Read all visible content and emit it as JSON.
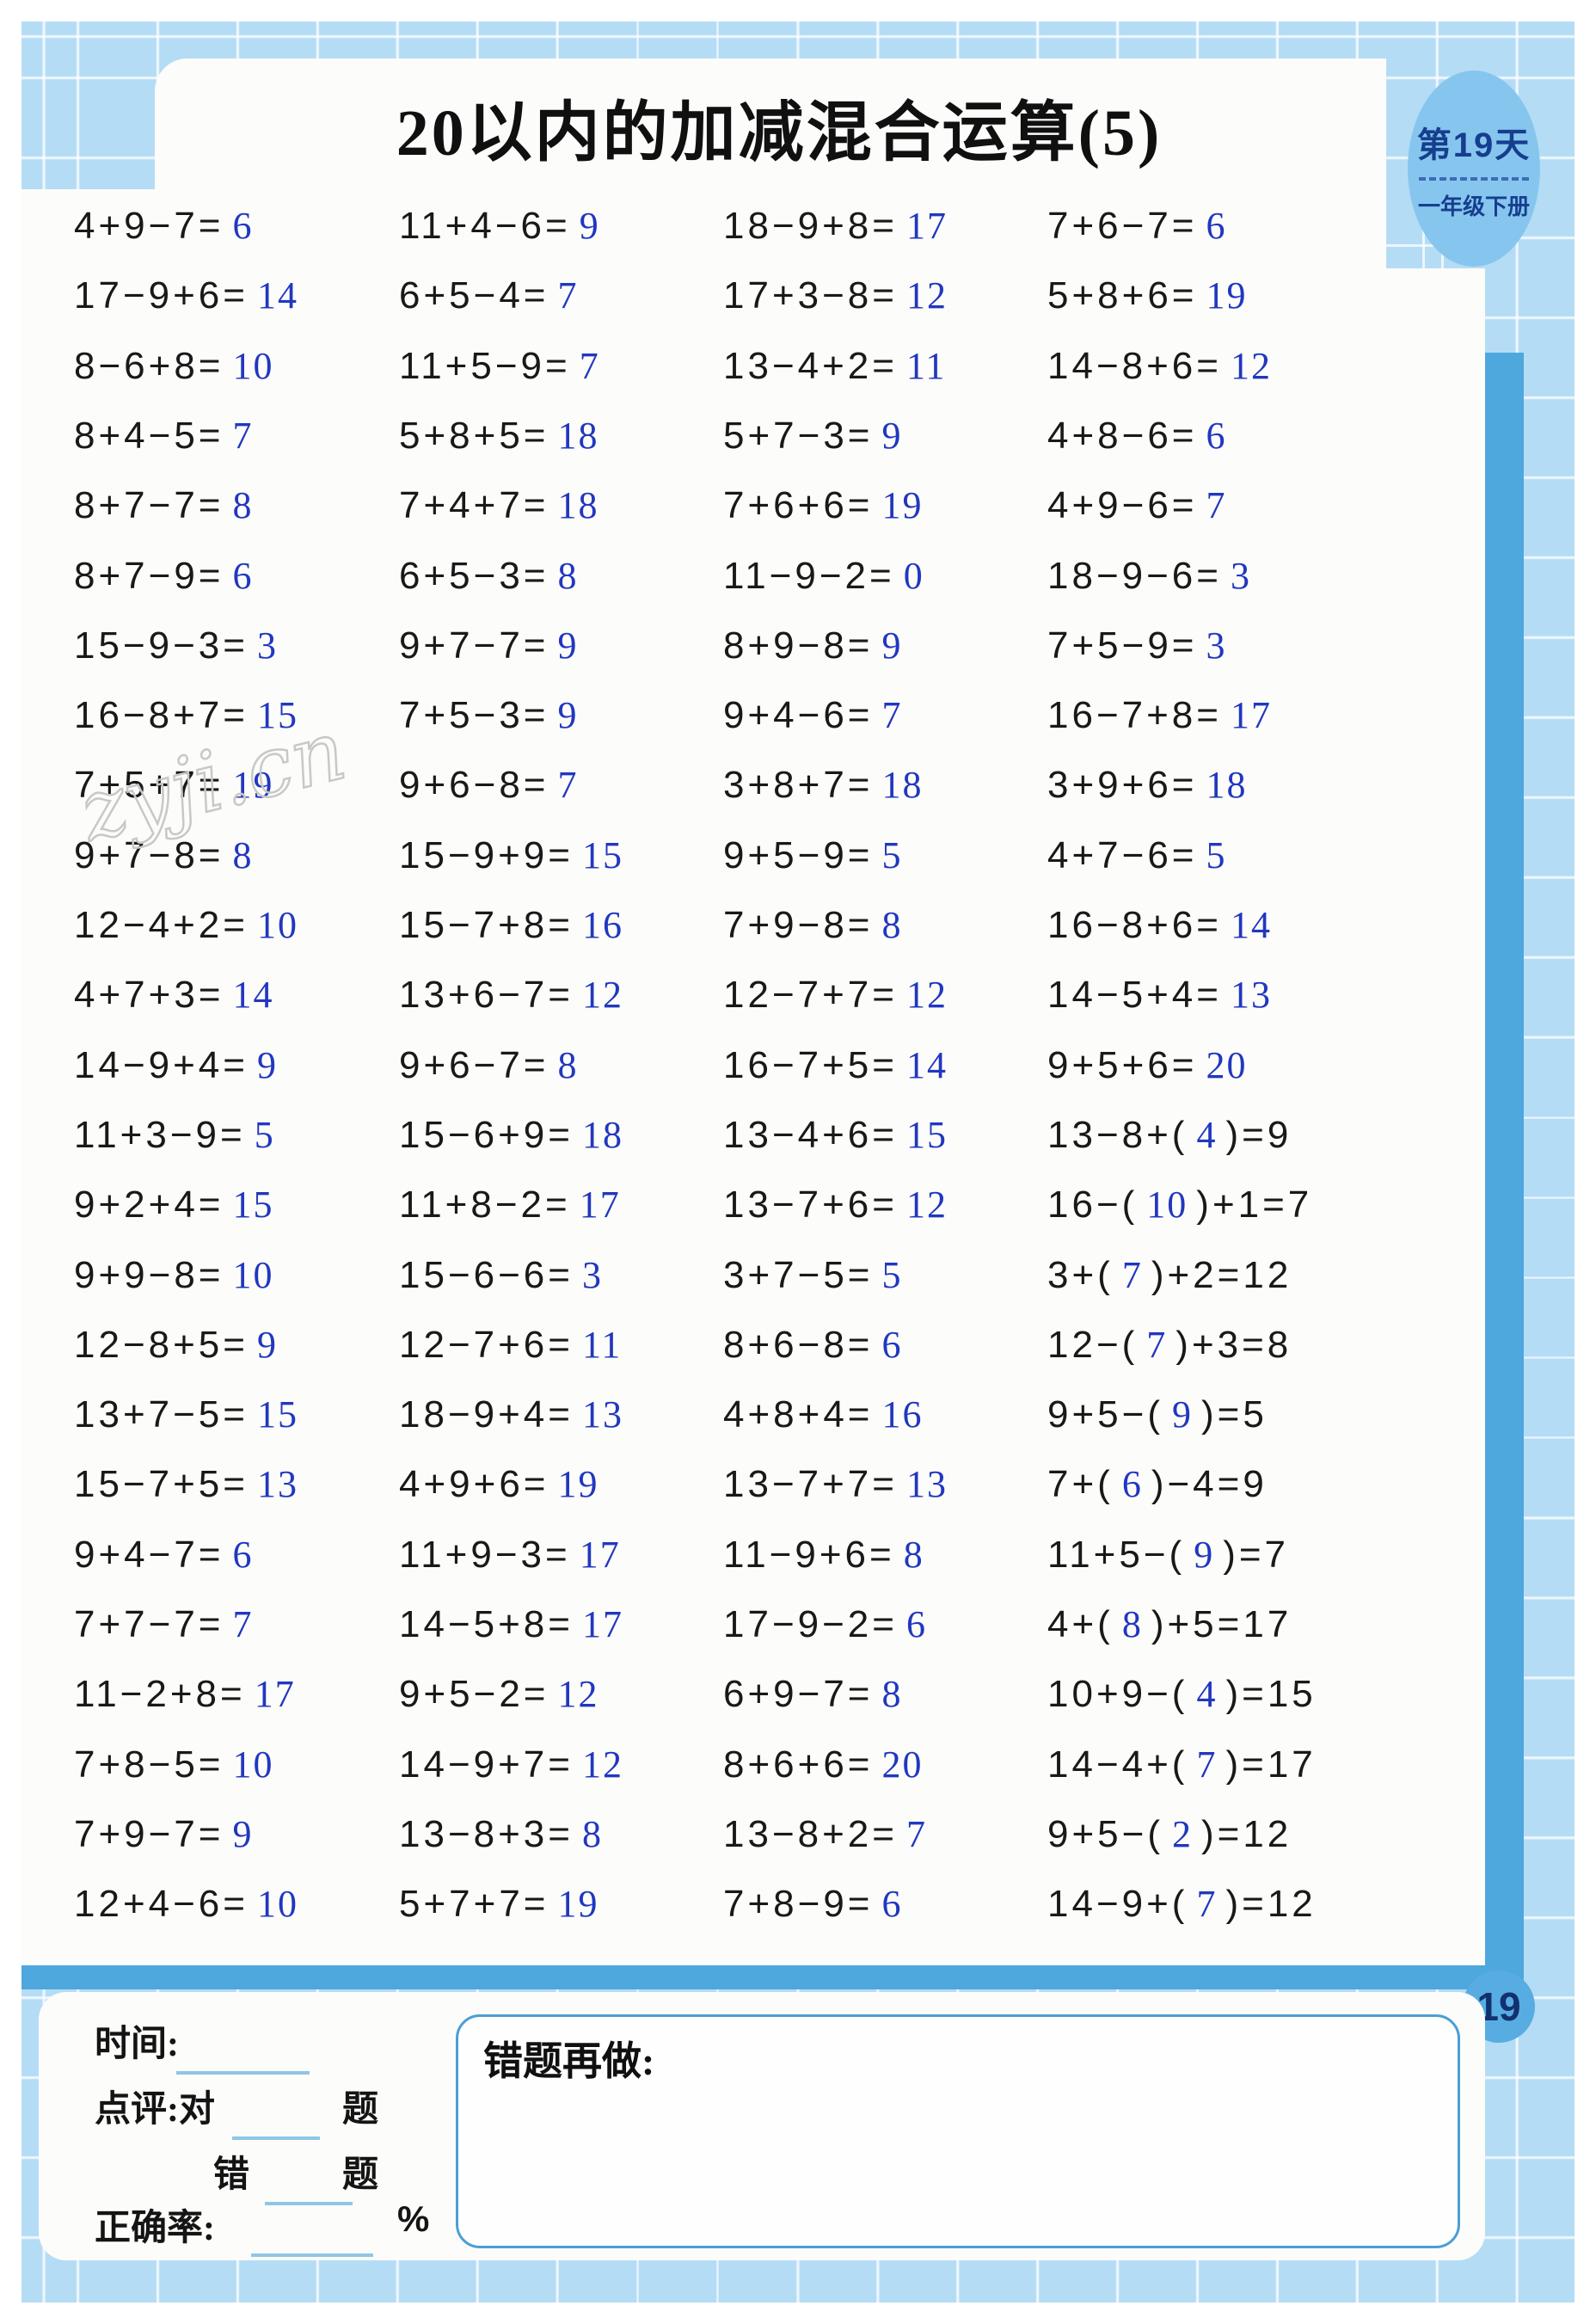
{
  "header": {
    "title": "20以内的加减混合运算(5)",
    "badge_line1": "第19天",
    "badge_line2": "一年级下册"
  },
  "watermark": {
    "text": "zyji.cn"
  },
  "colors": {
    "background_blue": "#b5dcf5",
    "bar_blue": "#4ea7dd",
    "badge_blue": "#86c6ee",
    "badge_text_navy": "#163e8e",
    "answer_blue": "#2137c0"
  },
  "problems": {
    "rows": 25,
    "columns": 4,
    "items": [
      [
        {
          "pre": "4+9−7=",
          "ans": "6",
          "post": ""
        },
        {
          "pre": "11+4−6=",
          "ans": "9",
          "post": ""
        },
        {
          "pre": "18−9+8=",
          "ans": "17",
          "post": ""
        },
        {
          "pre": "7+6−7=",
          "ans": "6",
          "post": ""
        }
      ],
      [
        {
          "pre": "17−9+6=",
          "ans": "14",
          "post": ""
        },
        {
          "pre": "6+5−4=",
          "ans": "7",
          "post": ""
        },
        {
          "pre": "17+3−8=",
          "ans": "12",
          "post": ""
        },
        {
          "pre": "5+8+6=",
          "ans": "19",
          "post": ""
        }
      ],
      [
        {
          "pre": "8−6+8=",
          "ans": "10",
          "post": ""
        },
        {
          "pre": "11+5−9=",
          "ans": "7",
          "post": ""
        },
        {
          "pre": "13−4+2=",
          "ans": "11",
          "post": ""
        },
        {
          "pre": "14−8+6=",
          "ans": "12",
          "post": ""
        }
      ],
      [
        {
          "pre": "8+4−5=",
          "ans": "7",
          "post": ""
        },
        {
          "pre": "5+8+5=",
          "ans": "18",
          "post": ""
        },
        {
          "pre": "5+7−3=",
          "ans": "9",
          "post": ""
        },
        {
          "pre": "4+8−6=",
          "ans": "6",
          "post": ""
        }
      ],
      [
        {
          "pre": "8+7−7=",
          "ans": "8",
          "post": ""
        },
        {
          "pre": "7+4+7=",
          "ans": "18",
          "post": ""
        },
        {
          "pre": "7+6+6=",
          "ans": "19",
          "post": ""
        },
        {
          "pre": "4+9−6=",
          "ans": "7",
          "post": ""
        }
      ],
      [
        {
          "pre": "8+7−9=",
          "ans": "6",
          "post": ""
        },
        {
          "pre": "6+5−3=",
          "ans": "8",
          "post": ""
        },
        {
          "pre": "11−9−2=",
          "ans": "0",
          "post": ""
        },
        {
          "pre": "18−9−6=",
          "ans": "3",
          "post": ""
        }
      ],
      [
        {
          "pre": "15−9−3=",
          "ans": "3",
          "post": ""
        },
        {
          "pre": "9+7−7=",
          "ans": "9",
          "post": ""
        },
        {
          "pre": "8+9−8=",
          "ans": "9",
          "post": ""
        },
        {
          "pre": "7+5−9=",
          "ans": "3",
          "post": ""
        }
      ],
      [
        {
          "pre": "16−8+7=",
          "ans": "15",
          "post": ""
        },
        {
          "pre": "7+5−3=",
          "ans": "9",
          "post": ""
        },
        {
          "pre": "9+4−6=",
          "ans": "7",
          "post": ""
        },
        {
          "pre": "16−7+8=",
          "ans": "17",
          "post": ""
        }
      ],
      [
        {
          "pre": "7+5+7=",
          "ans": "19",
          "post": ""
        },
        {
          "pre": "9+6−8=",
          "ans": "7",
          "post": ""
        },
        {
          "pre": "3+8+7=",
          "ans": "18",
          "post": ""
        },
        {
          "pre": "3+9+6=",
          "ans": "18",
          "post": ""
        }
      ],
      [
        {
          "pre": "9+7−8=",
          "ans": "8",
          "post": ""
        },
        {
          "pre": "15−9+9=",
          "ans": "15",
          "post": ""
        },
        {
          "pre": "9+5−9=",
          "ans": "5",
          "post": ""
        },
        {
          "pre": "4+7−6=",
          "ans": "5",
          "post": ""
        }
      ],
      [
        {
          "pre": "12−4+2=",
          "ans": "10",
          "post": ""
        },
        {
          "pre": "15−7+8=",
          "ans": "16",
          "post": ""
        },
        {
          "pre": "7+9−8=",
          "ans": "8",
          "post": ""
        },
        {
          "pre": "16−8+6=",
          "ans": "14",
          "post": ""
        }
      ],
      [
        {
          "pre": "4+7+3=",
          "ans": "14",
          "post": ""
        },
        {
          "pre": "13+6−7=",
          "ans": "12",
          "post": ""
        },
        {
          "pre": "12−7+7=",
          "ans": "12",
          "post": ""
        },
        {
          "pre": "14−5+4=",
          "ans": "13",
          "post": ""
        }
      ],
      [
        {
          "pre": "14−9+4=",
          "ans": "9",
          "post": ""
        },
        {
          "pre": "9+6−7=",
          "ans": "8",
          "post": ""
        },
        {
          "pre": "16−7+5=",
          "ans": "14",
          "post": ""
        },
        {
          "pre": "9+5+6=",
          "ans": "20",
          "post": ""
        }
      ],
      [
        {
          "pre": "11+3−9=",
          "ans": "5",
          "post": ""
        },
        {
          "pre": "15−6+9=",
          "ans": "18",
          "post": ""
        },
        {
          "pre": "13−4+6=",
          "ans": "15",
          "post": ""
        },
        {
          "pre": "13−8+(",
          "ans": "4",
          "post": ")=9"
        }
      ],
      [
        {
          "pre": "9+2+4=",
          "ans": "15",
          "post": ""
        },
        {
          "pre": "11+8−2=",
          "ans": "17",
          "post": ""
        },
        {
          "pre": "13−7+6=",
          "ans": "12",
          "post": ""
        },
        {
          "pre": "16−(",
          "ans": "10",
          "post": ")+1=7"
        }
      ],
      [
        {
          "pre": "9+9−8=",
          "ans": "10",
          "post": ""
        },
        {
          "pre": "15−6−6=",
          "ans": "3",
          "post": ""
        },
        {
          "pre": "3+7−5=",
          "ans": "5",
          "post": ""
        },
        {
          "pre": "3+(",
          "ans": "7",
          "post": ")+2=12"
        }
      ],
      [
        {
          "pre": "12−8+5=",
          "ans": "9",
          "post": ""
        },
        {
          "pre": "12−7+6=",
          "ans": "11",
          "post": ""
        },
        {
          "pre": "8+6−8=",
          "ans": "6",
          "post": ""
        },
        {
          "pre": "12−(",
          "ans": "7",
          "post": ")+3=8"
        }
      ],
      [
        {
          "pre": "13+7−5=",
          "ans": "15",
          "post": ""
        },
        {
          "pre": "18−9+4=",
          "ans": "13",
          "post": ""
        },
        {
          "pre": "4+8+4=",
          "ans": "16",
          "post": ""
        },
        {
          "pre": "9+5−(",
          "ans": "9",
          "post": ")=5"
        }
      ],
      [
        {
          "pre": "15−7+5=",
          "ans": "13",
          "post": ""
        },
        {
          "pre": "4+9+6=",
          "ans": "19",
          "post": ""
        },
        {
          "pre": "13−7+7=",
          "ans": "13",
          "post": ""
        },
        {
          "pre": "7+(",
          "ans": "6",
          "post": ")−4=9"
        }
      ],
      [
        {
          "pre": "9+4−7=",
          "ans": "6",
          "post": ""
        },
        {
          "pre": "11+9−3=",
          "ans": "17",
          "post": ""
        },
        {
          "pre": "11−9+6=",
          "ans": "8",
          "post": ""
        },
        {
          "pre": "11+5−(",
          "ans": "9",
          "post": ")=7"
        }
      ],
      [
        {
          "pre": "7+7−7=",
          "ans": "7",
          "post": ""
        },
        {
          "pre": "14−5+8=",
          "ans": "17",
          "post": ""
        },
        {
          "pre": "17−9−2=",
          "ans": "6",
          "post": ""
        },
        {
          "pre": "4+(",
          "ans": "8",
          "post": ")+5=17"
        }
      ],
      [
        {
          "pre": "11−2+8=",
          "ans": "17",
          "post": ""
        },
        {
          "pre": "9+5−2=",
          "ans": "12",
          "post": ""
        },
        {
          "pre": "6+9−7=",
          "ans": "8",
          "post": ""
        },
        {
          "pre": "10+9−(",
          "ans": "4",
          "post": ")=15"
        }
      ],
      [
        {
          "pre": "7+8−5=",
          "ans": "10",
          "post": ""
        },
        {
          "pre": "14−9+7=",
          "ans": "12",
          "post": ""
        },
        {
          "pre": "8+6+6=",
          "ans": "20",
          "post": ""
        },
        {
          "pre": "14−4+(",
          "ans": "7",
          "post": ")=17"
        }
      ],
      [
        {
          "pre": "7+9−7=",
          "ans": "9",
          "post": ""
        },
        {
          "pre": "13−8+3=",
          "ans": "8",
          "post": ""
        },
        {
          "pre": "13−8+2=",
          "ans": "7",
          "post": ""
        },
        {
          "pre": "9+5−(",
          "ans": "2",
          "post": ")=12"
        }
      ],
      [
        {
          "pre": "12+4−6=",
          "ans": "10",
          "post": ""
        },
        {
          "pre": "5+7+7=",
          "ans": "19",
          "post": ""
        },
        {
          "pre": "7+8−9=",
          "ans": "6",
          "post": ""
        },
        {
          "pre": "14−9+(",
          "ans": "7",
          "post": ")=12"
        }
      ]
    ]
  },
  "footer": {
    "time_label": "时间:",
    "review_label": "点评:对",
    "tally_suffix": "题",
    "wrong_label": "错",
    "accuracy_label": "正确率:",
    "percent_sign": "%",
    "redo_label": "错题再做:",
    "page_number": "19"
  }
}
